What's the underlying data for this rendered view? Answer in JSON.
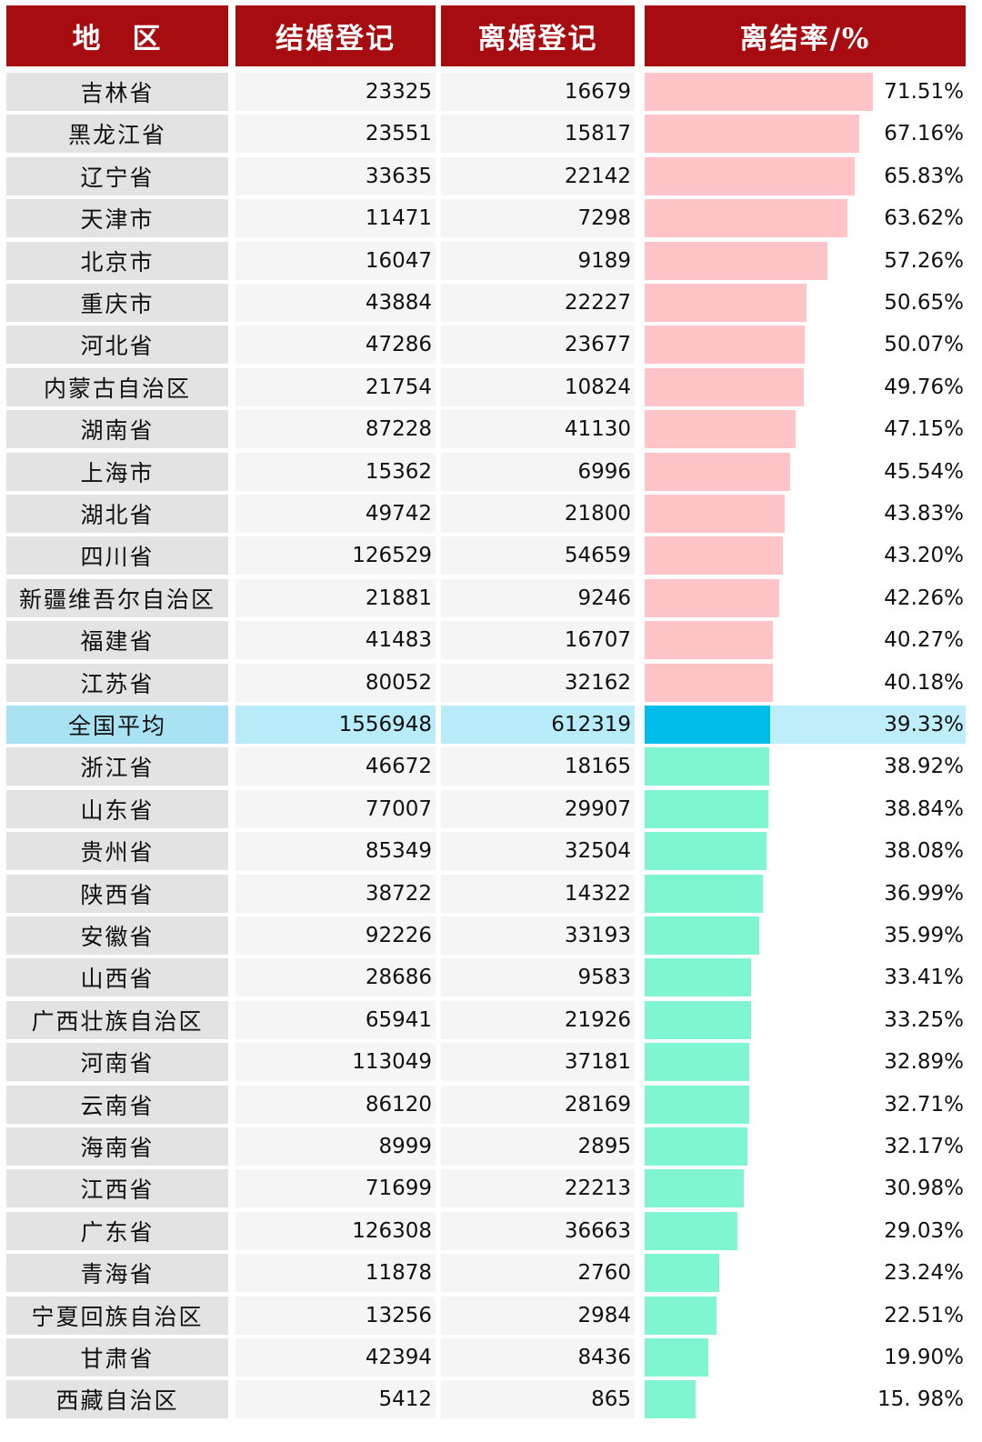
{
  "headers": {
    "region": "地　区",
    "marriage": "结婚登记",
    "divorce": "离婚登记",
    "ratio": "离结率/%"
  },
  "colors": {
    "header_bg": "#a70d10",
    "above_average_bar": "#ffc4c8",
    "average_bar": "#00bdea",
    "below_average_bar": "#7ff5d2",
    "average_row_bg": "#b8ecf9"
  },
  "chart_data": {
    "type": "table",
    "columns": [
      "地　区",
      "结婚登记",
      "离婚登记",
      "离结率/%"
    ],
    "bar_axis_max": 71.51,
    "rows": [
      {
        "region": "吉林省",
        "marriage": "23325",
        "divorce": "16679",
        "rate": 71.51,
        "rate_label": "71.51%",
        "group": "above"
      },
      {
        "region": "黑龙江省",
        "marriage": "23551",
        "divorce": "15817",
        "rate": 67.16,
        "rate_label": "67.16%",
        "group": "above"
      },
      {
        "region": "辽宁省",
        "marriage": "33635",
        "divorce": "22142",
        "rate": 65.83,
        "rate_label": "65.83%",
        "group": "above"
      },
      {
        "region": "天津市",
        "marriage": "11471",
        "divorce": "7298",
        "rate": 63.62,
        "rate_label": "63.62%",
        "group": "above"
      },
      {
        "region": "北京市",
        "marriage": "16047",
        "divorce": "9189",
        "rate": 57.26,
        "rate_label": "57.26%",
        "group": "above"
      },
      {
        "region": "重庆市",
        "marriage": "43884",
        "divorce": "22227",
        "rate": 50.65,
        "rate_label": "50.65%",
        "group": "above"
      },
      {
        "region": "河北省",
        "marriage": "47286",
        "divorce": "23677",
        "rate": 50.07,
        "rate_label": "50.07%",
        "group": "above"
      },
      {
        "region": "内蒙古自治区",
        "marriage": "21754",
        "divorce": "10824",
        "rate": 49.76,
        "rate_label": "49.76%",
        "group": "above"
      },
      {
        "region": "湖南省",
        "marriage": "87228",
        "divorce": "41130",
        "rate": 47.15,
        "rate_label": "47.15%",
        "group": "above"
      },
      {
        "region": "上海市",
        "marriage": "15362",
        "divorce": "6996",
        "rate": 45.54,
        "rate_label": "45.54%",
        "group": "above"
      },
      {
        "region": "湖北省",
        "marriage": "49742",
        "divorce": "21800",
        "rate": 43.83,
        "rate_label": "43.83%",
        "group": "above"
      },
      {
        "region": "四川省",
        "marriage": "126529",
        "divorce": "54659",
        "rate": 43.2,
        "rate_label": "43.20%",
        "group": "above"
      },
      {
        "region": "新疆维吾尔自治区",
        "marriage": "21881",
        "divorce": "9246",
        "rate": 42.26,
        "rate_label": "42.26%",
        "group": "above"
      },
      {
        "region": "福建省",
        "marriage": "41483",
        "divorce": "16707",
        "rate": 40.27,
        "rate_label": "40.27%",
        "group": "above"
      },
      {
        "region": "江苏省",
        "marriage": "80052",
        "divorce": "32162",
        "rate": 40.18,
        "rate_label": "40.18%",
        "group": "above"
      },
      {
        "region": "全国平均",
        "marriage": "1556948",
        "divorce": "612319",
        "rate": 39.33,
        "rate_label": "39.33%",
        "group": "average"
      },
      {
        "region": "浙江省",
        "marriage": "46672",
        "divorce": "18165",
        "rate": 38.92,
        "rate_label": "38.92%",
        "group": "below"
      },
      {
        "region": "山东省",
        "marriage": "77007",
        "divorce": "29907",
        "rate": 38.84,
        "rate_label": "38.84%",
        "group": "below"
      },
      {
        "region": "贵州省",
        "marriage": "85349",
        "divorce": "32504",
        "rate": 38.08,
        "rate_label": "38.08%",
        "group": "below"
      },
      {
        "region": "陕西省",
        "marriage": "38722",
        "divorce": "14322",
        "rate": 36.99,
        "rate_label": "36.99%",
        "group": "below"
      },
      {
        "region": "安徽省",
        "marriage": "92226",
        "divorce": "33193",
        "rate": 35.99,
        "rate_label": "35.99%",
        "group": "below"
      },
      {
        "region": "山西省",
        "marriage": "28686",
        "divorce": "9583",
        "rate": 33.41,
        "rate_label": "33.41%",
        "group": "below"
      },
      {
        "region": "广西壮族自治区",
        "marriage": "65941",
        "divorce": "21926",
        "rate": 33.25,
        "rate_label": "33.25%",
        "group": "below"
      },
      {
        "region": "河南省",
        "marriage": "113049",
        "divorce": "37181",
        "rate": 32.89,
        "rate_label": "32.89%",
        "group": "below"
      },
      {
        "region": "云南省",
        "marriage": "86120",
        "divorce": "28169",
        "rate": 32.71,
        "rate_label": "32.71%",
        "group": "below"
      },
      {
        "region": "海南省",
        "marriage": "8999",
        "divorce": "2895",
        "rate": 32.17,
        "rate_label": "32.17%",
        "group": "below"
      },
      {
        "region": "江西省",
        "marriage": "71699",
        "divorce": "22213",
        "rate": 30.98,
        "rate_label": "30.98%",
        "group": "below"
      },
      {
        "region": "广东省",
        "marriage": "126308",
        "divorce": "36663",
        "rate": 29.03,
        "rate_label": "29.03%",
        "group": "below"
      },
      {
        "region": "青海省",
        "marriage": "11878",
        "divorce": "2760",
        "rate": 23.24,
        "rate_label": "23.24%",
        "group": "below"
      },
      {
        "region": "宁夏回族自治区",
        "marriage": "13256",
        "divorce": "2984",
        "rate": 22.51,
        "rate_label": "22.51%",
        "group": "below"
      },
      {
        "region": "甘肃省",
        "marriage": "42394",
        "divorce": "8436",
        "rate": 19.9,
        "rate_label": "19.90%",
        "group": "below"
      },
      {
        "region": "西藏自治区",
        "marriage": "5412",
        "divorce": "865",
        "rate": 15.98,
        "rate_label": "15. 98%",
        "group": "below"
      }
    ]
  }
}
